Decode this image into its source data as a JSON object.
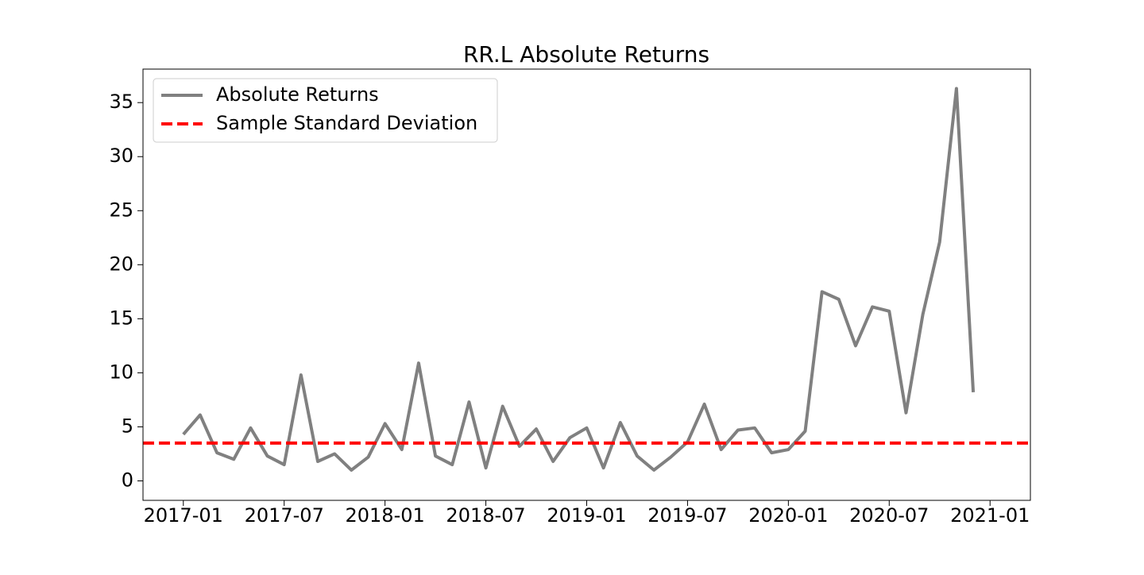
{
  "chart_data": {
    "type": "line",
    "title": "RR.L Absolute Returns",
    "x": [
      "2017-01",
      "2017-02",
      "2017-03",
      "2017-04",
      "2017-05",
      "2017-06",
      "2017-07",
      "2017-08",
      "2017-09",
      "2017-10",
      "2017-11",
      "2017-12",
      "2018-01",
      "2018-02",
      "2018-03",
      "2018-04",
      "2018-05",
      "2018-06",
      "2018-07",
      "2018-08",
      "2018-09",
      "2018-10",
      "2018-11",
      "2018-12",
      "2019-01",
      "2019-02",
      "2019-03",
      "2019-04",
      "2019-05",
      "2019-06",
      "2019-07",
      "2019-08",
      "2019-09",
      "2019-10",
      "2019-11",
      "2019-12",
      "2020-01",
      "2020-02",
      "2020-03",
      "2020-04",
      "2020-05",
      "2020-06",
      "2020-07",
      "2020-08",
      "2020-09",
      "2020-10",
      "2020-11",
      "2020-12"
    ],
    "series": [
      {
        "name": "Absolute Returns",
        "color": "#808080",
        "values": [
          4.3,
          6.1,
          2.6,
          2.0,
          4.9,
          2.3,
          1.5,
          9.8,
          1.8,
          2.5,
          1.0,
          2.2,
          5.3,
          2.9,
          10.9,
          2.3,
          1.5,
          7.3,
          1.2,
          6.9,
          3.2,
          4.8,
          1.8,
          4.0,
          4.9,
          1.2,
          5.4,
          2.3,
          1.0,
          2.2,
          3.6,
          7.1,
          2.9,
          4.7,
          4.9,
          2.6,
          2.9,
          4.6,
          17.5,
          16.8,
          12.5,
          16.1,
          15.7,
          6.3,
          15.4,
          22.1,
          36.3,
          8.2
        ]
      },
      {
        "name": "Sample Standard Deviation",
        "color": "#ff0000",
        "dashed": true,
        "hline": 3.5
      }
    ],
    "xticks": [
      "2017-01",
      "2017-07",
      "2018-01",
      "2018-07",
      "2019-01",
      "2019-07",
      "2020-01",
      "2020-07",
      "2021-01"
    ],
    "ylim": [
      -1.8,
      38.1
    ],
    "yticks": [
      0,
      5,
      10,
      15,
      20,
      25,
      30,
      35
    ],
    "legend": "upper left"
  }
}
